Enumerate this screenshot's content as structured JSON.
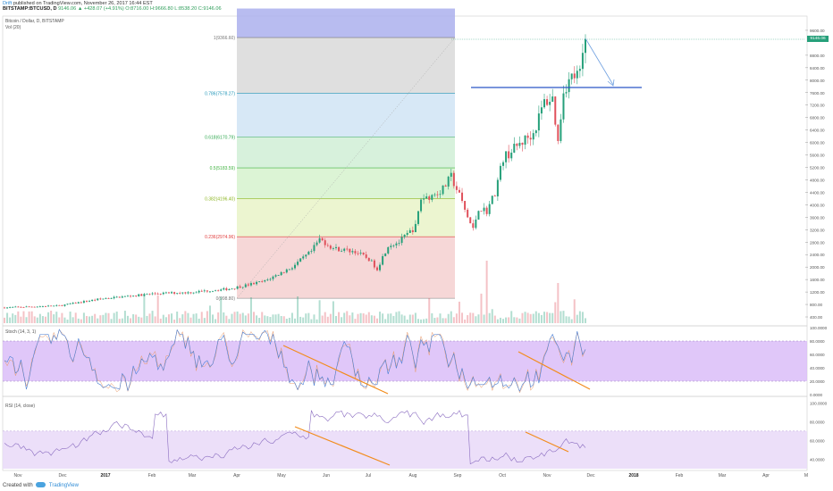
{
  "header": {
    "user": "Drift",
    "published": "published on TradingView.com, November 26, 2017 16:44 EST",
    "symbol_line": "BITSTAMP:BTCUSD, D",
    "quote": "9146.06 ▲ +428.07 (+4.91%) O:8716.00 H:9666.80 L:8538.20 C:9146.06"
  },
  "main_pane": {
    "title": "Bitcoin / Dollar, D, BITSTAMP",
    "vol_label": "Vol (20)",
    "price_ticks": [
      "9600.00",
      "8800.00",
      "8400.00",
      "8000.00",
      "7600.00",
      "7200.00",
      "6800.00",
      "6400.00",
      "6000.00",
      "5600.00",
      "5200.00",
      "4800.00",
      "4400.00",
      "4000.00",
      "3600.00",
      "3200.00",
      "2800.00",
      "2400.00",
      "2000.00",
      "1600.00",
      "1200.00",
      "800.00",
      "400.00"
    ],
    "last_price": "9146.06",
    "fib_levels": [
      {
        "label": "1(9366.60)",
        "color": "#787878"
      },
      {
        "label": "0.786(7578.27)",
        "color": "#2196b8"
      },
      {
        "label": "0.618(6170.79)",
        "color": "#2fa84f"
      },
      {
        "label": "0.5(5183.59)",
        "color": "#3fb23f"
      },
      {
        "label": "0.382(4196.40)",
        "color": "#8bb520"
      },
      {
        "label": "0.236(2974.96)",
        "color": "#e03b3b"
      },
      {
        "label": "0(998.80)",
        "color": "#787878"
      }
    ],
    "colors": {
      "up": "#26a07a",
      "down": "#e0515b",
      "annotation_line": "#2a56c6",
      "arrow": "#6fa0e0"
    }
  },
  "stoch_pane": {
    "title": "Stoch (14, 3, 1)",
    "ticks": [
      "100.0000",
      "80.0000",
      "60.0000",
      "40.0000",
      "20.0000",
      "0.0000"
    ],
    "band_color": "#d8b9f7",
    "trend_color": "#f28c1c"
  },
  "rsi_pane": {
    "title": "RSI (14, close)",
    "ticks": [
      "100.0000",
      "80.0000",
      "60.0000",
      "40.0000"
    ],
    "band_color": "#eadcf8",
    "trend_color": "#f28c1c"
  },
  "x_axis": [
    "Nov",
    "Dec",
    "2017",
    "Feb",
    "Mar",
    "Apr",
    "May",
    "Jun",
    "Jul",
    "Aug",
    "Sep",
    "Oct",
    "Nov",
    "Dec",
    "2018",
    "Feb",
    "Mar",
    "Apr",
    "M"
  ],
  "footer": {
    "text": "Created with",
    "brand": "TradingView"
  }
}
